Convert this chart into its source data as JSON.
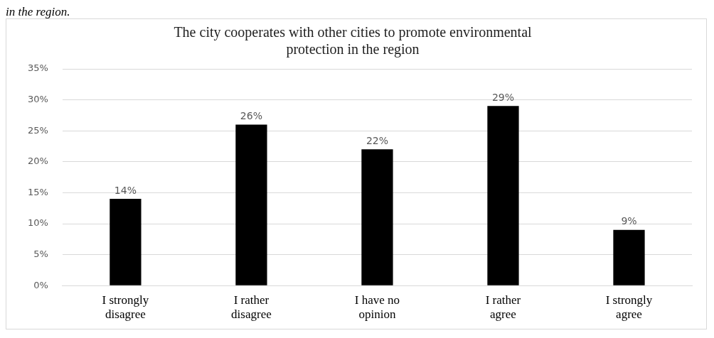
{
  "chart_data": {
    "type": "bar",
    "title": "The city cooperates with other cities to promote environmental protection in the region",
    "categories": [
      "I strongly disagree",
      "I rather disagree",
      "I have no opinion",
      "I rather agree",
      "I strongly agree"
    ],
    "values": [
      14,
      26,
      22,
      29,
      9
    ],
    "value_labels": [
      "14%",
      "26%",
      "22%",
      "29%",
      "9%"
    ],
    "color": "#000000",
    "ylim": [
      0,
      35
    ],
    "yticks": [
      {
        "value": 0,
        "label": "0%"
      },
      {
        "value": 5,
        "label": "5%"
      },
      {
        "value": 10,
        "label": "10%"
      },
      {
        "value": 15,
        "label": "15%"
      },
      {
        "value": 20,
        "label": "20%"
      },
      {
        "value": 25,
        "label": "25%"
      },
      {
        "value": 30,
        "label": "30%"
      },
      {
        "value": 35,
        "label": "35%"
      }
    ],
    "grid": "y",
    "legend": false,
    "annotations": [
      "in the region."
    ]
  }
}
